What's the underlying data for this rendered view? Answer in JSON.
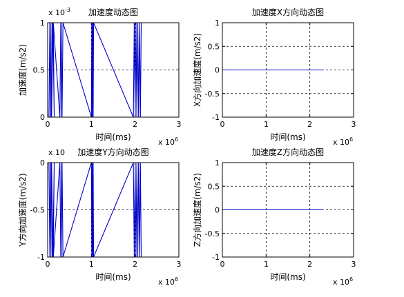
{
  "colors": {
    "line": "#0000cc",
    "axes": "#000000",
    "grid": "#000000",
    "background": "#ffffff"
  },
  "chart_data": [
    {
      "type": "line",
      "title": "加速度动态图",
      "xlabel": "时间(ms)",
      "ylabel": "加速度(m/s2)",
      "xlim": [
        0,
        3
      ],
      "ylim": [
        0,
        1
      ],
      "xticks": [
        "0",
        "1",
        "2",
        "3"
      ],
      "yticks": [
        "0",
        "0.5",
        "1"
      ],
      "x_exponent": {
        "base": "x 10",
        "power": "6"
      },
      "y_exponent": {
        "base": "x 10",
        "power": "-3"
      },
      "grid": true,
      "series": [
        {
          "x": [
            0.03,
            0.05,
            0.07,
            0.06,
            0.08,
            0.1,
            0.09,
            0.12,
            0.15,
            0.13,
            0.28,
            0.3,
            0.32,
            0.31,
            0.33,
            0.35,
            1.0,
            1.01,
            1.02,
            1.03,
            1.04,
            1.05,
            1.96,
            1.98,
            2.0,
            2.02,
            2.04,
            2.06,
            2.08,
            2.1,
            2.12,
            2.14
          ],
          "y": [
            0,
            1,
            0,
            1,
            0,
            1,
            0,
            1,
            0,
            1,
            0,
            1,
            0,
            1,
            0,
            1,
            0,
            1,
            0,
            1,
            0,
            1,
            0,
            1,
            0,
            1,
            0,
            1,
            0,
            1,
            0,
            1
          ]
        }
      ]
    },
    {
      "type": "line",
      "title": "加速度X方向动态图",
      "xlabel": "时间(ms)",
      "ylabel": "X方向加速度(m/s2)",
      "xlim": [
        0,
        3
      ],
      "ylim": [
        -1,
        1
      ],
      "xticks": [
        "0",
        "1",
        "2",
        "3"
      ],
      "yticks": [
        "-1",
        "-0.5",
        "0",
        "0.5",
        "1"
      ],
      "x_exponent": {
        "base": "x 10",
        "power": "6"
      },
      "grid": true,
      "series": [
        {
          "x": [
            0,
            2.3
          ],
          "y": [
            0,
            0
          ]
        }
      ]
    },
    {
      "type": "line",
      "title": "加速度Y方向动态图",
      "xlabel": "时间(ms)",
      "ylabel": "Y方向加速度(m/s2)",
      "xlim": [
        0,
        3
      ],
      "ylim": [
        -1,
        0
      ],
      "xticks": [
        "0",
        "1",
        "2",
        "3"
      ],
      "yticks": [
        "-1",
        "-0.5",
        "0"
      ],
      "x_exponent": {
        "base": "x 10",
        "power": "6"
      },
      "y_exponent": {
        "base": "x 10",
        "power": ""
      },
      "grid": true,
      "series": [
        {
          "x": [
            0.03,
            0.05,
            0.07,
            0.06,
            0.08,
            0.1,
            0.09,
            0.12,
            0.15,
            0.13,
            0.28,
            0.3,
            0.32,
            0.31,
            0.33,
            0.35,
            1.0,
            1.01,
            1.02,
            1.03,
            1.04,
            1.05,
            1.96,
            1.98,
            2.0,
            2.02,
            2.04,
            2.06,
            2.08,
            2.1,
            2.12,
            2.14
          ],
          "y": [
            0,
            -1,
            0,
            -1,
            0,
            -1,
            0,
            -1,
            0,
            -1,
            0,
            -1,
            0,
            -1,
            0,
            -1,
            0,
            -1,
            0,
            -1,
            0,
            -1,
            0,
            -1,
            0,
            -1,
            0,
            -1,
            0,
            -1,
            0,
            -1
          ]
        }
      ]
    },
    {
      "type": "line",
      "title": "加速度Z方向动态图",
      "xlabel": "时间(ms)",
      "ylabel": "Z方向加速度(m/s2)",
      "xlim": [
        0,
        3
      ],
      "ylim": [
        -1,
        1
      ],
      "xticks": [
        "0",
        "1",
        "2",
        "3"
      ],
      "yticks": [
        "-1",
        "-0.5",
        "0",
        "0.5",
        "1"
      ],
      "x_exponent": {
        "base": "x 10",
        "power": "6"
      },
      "grid": true,
      "series": [
        {
          "x": [
            0,
            2.3
          ],
          "y": [
            0,
            0
          ]
        }
      ]
    }
  ]
}
